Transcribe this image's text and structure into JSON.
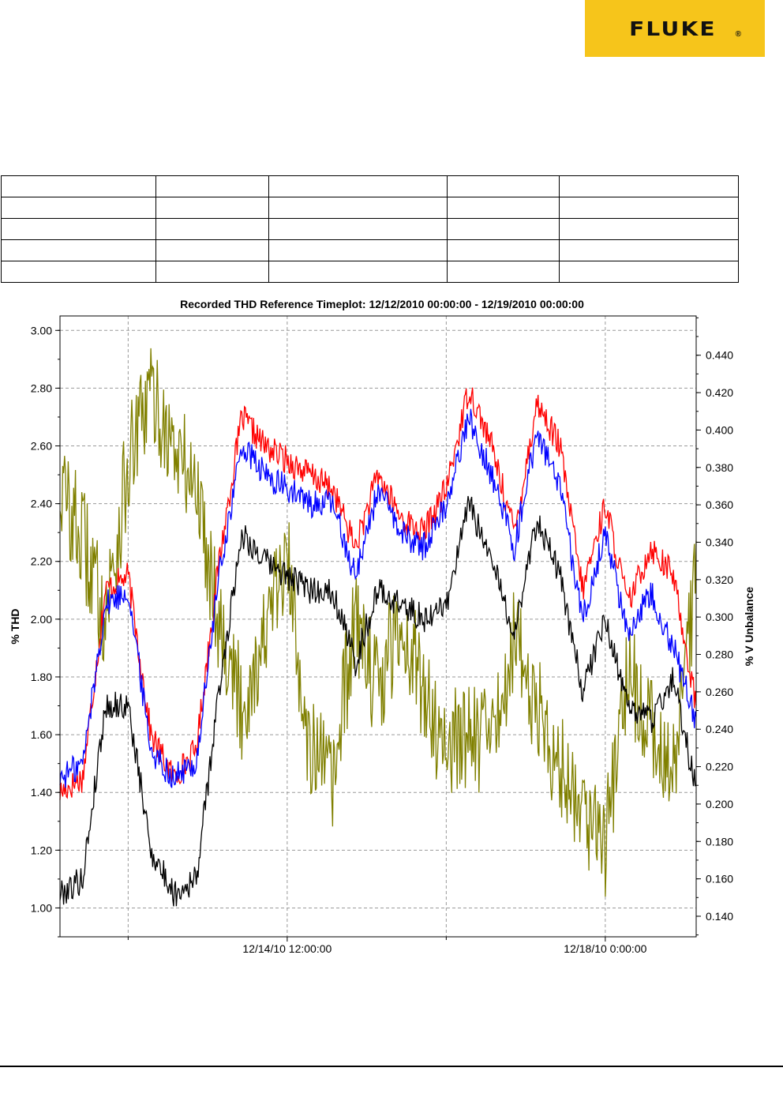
{
  "brand": {
    "logo_text": "FLUKE",
    "logo_mark": "®",
    "color": "#f6c51b"
  },
  "info_table": {
    "rows": 5,
    "cols": 5,
    "cells": [
      [
        "",
        "",
        "",
        "",
        ""
      ],
      [
        "",
        "",
        "",
        "",
        ""
      ],
      [
        "",
        "",
        "",
        "",
        ""
      ],
      [
        "",
        "",
        "",
        "",
        ""
      ],
      [
        "",
        "",
        "",
        "",
        ""
      ]
    ]
  },
  "chart_data": {
    "type": "line",
    "title": "Recorded THD Reference Timeplot: 12/12/2010 00:00:00 - 12/19/2010 00:00:00",
    "ylabel": "% THD",
    "y2label": "% V Unbalance",
    "x_range": [
      "12/12/2010 00:00:00",
      "12/19/2010 00:00:00"
    ],
    "x_tick_labels": [
      "12/14/10 12:00:00",
      "12/18/10 0:00:00"
    ],
    "ylim": [
      0.9,
      3.05
    ],
    "y_ticks": [
      "1.00",
      "1.20",
      "1.40",
      "1.60",
      "1.80",
      "2.00",
      "2.20",
      "2.40",
      "2.60",
      "2.80",
      "3.00"
    ],
    "y2lim": [
      0.129,
      0.461
    ],
    "y2_ticks": [
      "0.140",
      "0.160",
      "0.180",
      "0.200",
      "0.220",
      "0.240",
      "0.260",
      "0.280",
      "0.300",
      "0.320",
      "0.340",
      "0.360",
      "0.380",
      "0.400",
      "0.420",
      "0.440"
    ],
    "grid": true,
    "x_days": [
      0,
      0.25,
      0.5,
      0.75,
      1,
      1.25,
      1.5,
      1.75,
      2,
      2.25,
      2.5,
      2.75,
      3,
      3.25,
      3.5,
      3.75,
      4,
      4.25,
      4.5,
      4.75,
      5,
      5.25,
      5.5,
      5.75,
      6,
      6.25,
      6.5,
      6.75,
      7
    ],
    "series": [
      {
        "axis": "left",
        "color": "#ff0000",
        "values": [
          1.4,
          1.45,
          2.1,
          2.15,
          1.6,
          1.45,
          1.55,
          2.2,
          2.7,
          2.6,
          2.55,
          2.5,
          2.45,
          2.25,
          2.5,
          2.35,
          2.3,
          2.45,
          2.8,
          2.6,
          2.3,
          2.75,
          2.6,
          2.1,
          2.4,
          2.05,
          2.25,
          2.15,
          1.7
        ]
      },
      {
        "axis": "left",
        "color": "#0000ff",
        "values": [
          1.45,
          1.5,
          2.05,
          2.1,
          1.55,
          1.45,
          1.5,
          2.15,
          2.6,
          2.5,
          2.45,
          2.4,
          2.4,
          2.15,
          2.45,
          2.3,
          2.25,
          2.4,
          2.7,
          2.5,
          2.25,
          2.65,
          2.45,
          2.0,
          2.3,
          1.95,
          2.1,
          1.9,
          1.65
        ]
      },
      {
        "axis": "left",
        "color": "#000000",
        "values": [
          1.05,
          1.1,
          1.7,
          1.7,
          1.2,
          1.05,
          1.1,
          1.75,
          2.3,
          2.2,
          2.15,
          2.1,
          2.1,
          1.85,
          2.1,
          2.05,
          2.0,
          2.05,
          2.4,
          2.2,
          1.95,
          2.35,
          2.15,
          1.75,
          2.0,
          1.7,
          1.65,
          1.8,
          1.4
        ]
      },
      {
        "axis": "right",
        "color": "#808000",
        "values": [
          0.37,
          0.34,
          0.3,
          0.38,
          0.42,
          0.39,
          0.37,
          0.3,
          0.25,
          0.29,
          0.33,
          0.23,
          0.21,
          0.3,
          0.26,
          0.3,
          0.26,
          0.23,
          0.24,
          0.23,
          0.29,
          0.25,
          0.22,
          0.2,
          0.18,
          0.27,
          0.24,
          0.22,
          0.32
        ]
      }
    ]
  }
}
